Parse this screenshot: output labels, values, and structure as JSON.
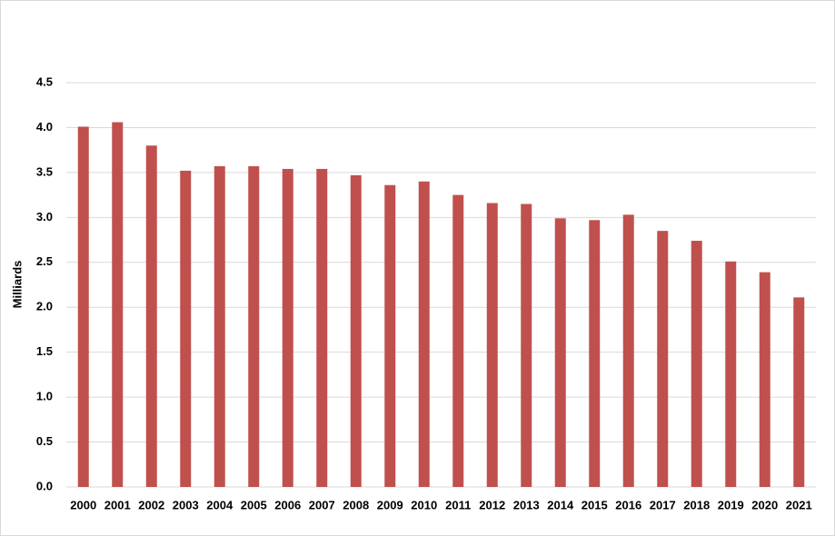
{
  "chart_data": {
    "type": "bar",
    "y_label": "Milliards",
    "categories": [
      "2000",
      "2001",
      "2002",
      "2003",
      "2004",
      "2005",
      "2006",
      "2007",
      "2008",
      "2009",
      "2010",
      "2011",
      "2012",
      "2013",
      "2014",
      "2015",
      "2016",
      "2017",
      "2018",
      "2019",
      "2020",
      "2021"
    ],
    "values": [
      4.01,
      4.06,
      3.8,
      3.52,
      3.57,
      3.57,
      3.54,
      3.54,
      3.47,
      3.36,
      3.4,
      3.25,
      3.16,
      3.15,
      2.99,
      2.97,
      3.03,
      2.85,
      2.74,
      2.51,
      2.39,
      2.11
    ],
    "color": "#c0504d",
    "ylim": [
      0,
      4.5
    ],
    "yticks": [
      {
        "value": 0,
        "label": "0.0"
      },
      0.5,
      {
        "value": 1,
        "label": "1.0"
      },
      1.5,
      {
        "value": 2,
        "label": "2.0"
      },
      2.5,
      {
        "value": 3,
        "label": "3.0"
      },
      3.5,
      {
        "value": 4,
        "label": "4.0"
      },
      4.5
    ],
    "grid": true
  }
}
